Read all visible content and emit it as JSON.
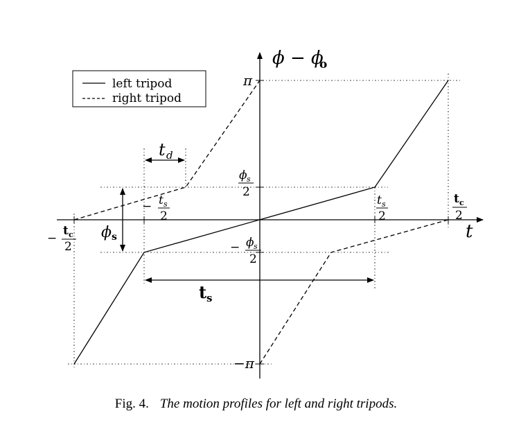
{
  "legend": {
    "left_tripod": "left tripod",
    "right_tripod": "right tripod"
  },
  "axes": {
    "y_label_main": "ϕ − ϕ",
    "y_label_sub": "o",
    "x_label": "t"
  },
  "ticks": {
    "pi": "π",
    "neg_pi": "−π",
    "phi_s": "ϕ",
    "phi_s_sub": "s",
    "neg_sign": "−",
    "two": "2",
    "t": "t",
    "t_sub_s": "s",
    "t_bold": "t",
    "t_sub_c": "c"
  },
  "annotations": {
    "t_d_main": "t",
    "t_d_sub": "d",
    "phi_s_main": "ϕ",
    "phi_s_sub": "s",
    "t_s_main": "t",
    "t_s_sub": "s"
  },
  "caption": {
    "label": "Fig. 4.",
    "text": "The motion profiles for left and right tripods."
  },
  "colors": {
    "ink": "#000000",
    "background": "#ffffff"
  }
}
